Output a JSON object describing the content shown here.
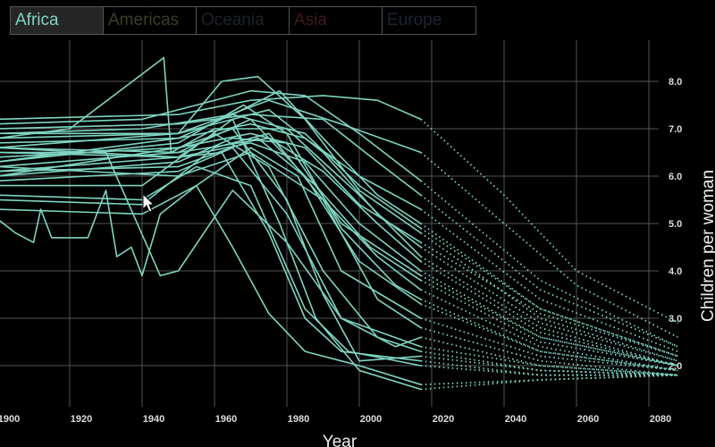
{
  "legend": [
    {
      "label": "Africa",
      "color": "#7fd4c1",
      "active": true
    },
    {
      "label": "Americas",
      "color": "#3a3f24",
      "active": false
    },
    {
      "label": "Oceania",
      "color": "#1e2328",
      "active": false
    },
    {
      "label": "Asia",
      "color": "#3e1b1d",
      "active": false
    },
    {
      "label": "Europe",
      "color": "#1c2531",
      "active": false
    }
  ],
  "chart_data": {
    "type": "line",
    "xlabel": "Year",
    "ylabel": "Children per woman",
    "xlim": [
      1900,
      2088
    ],
    "ylim": [
      1.5,
      8.6
    ],
    "x_ticks": [
      "1900",
      "1920",
      "1940",
      "1960",
      "1980",
      "2000",
      "2020",
      "2040",
      "2060",
      "2080"
    ],
    "y_ticks": [
      "2.0",
      "3.0",
      "4.0",
      "5.0",
      "6.0",
      "7.0",
      "8.0"
    ],
    "grid": true,
    "line_color": "#7fd4c1",
    "history_style": "solid",
    "projection_style": "dotted",
    "series": [
      {
        "history": [
          [
            1900,
            7.2
          ],
          [
            1950,
            7.3
          ],
          [
            1970,
            7.6
          ],
          [
            1990,
            7.7
          ],
          [
            2005,
            7.6
          ],
          [
            2017,
            7.2
          ]
        ],
        "projection": [
          [
            2017,
            7.2
          ],
          [
            2040,
            5.6
          ],
          [
            2060,
            4.0
          ],
          [
            2088,
            2.9
          ]
        ]
      },
      {
        "history": [
          [
            1900,
            6.9
          ],
          [
            1950,
            6.9
          ],
          [
            1975,
            7.6
          ],
          [
            1995,
            7.1
          ],
          [
            2017,
            6.5
          ]
        ],
        "projection": [
          [
            2017,
            6.5
          ],
          [
            2040,
            5.0
          ],
          [
            2060,
            3.7
          ],
          [
            2088,
            2.6
          ]
        ]
      },
      {
        "history": [
          [
            1900,
            5.1
          ],
          [
            1905,
            4.8
          ],
          [
            1910,
            4.6
          ],
          [
            1912,
            5.3
          ],
          [
            1915,
            4.7
          ],
          [
            1925,
            4.7
          ],
          [
            1930,
            5.7
          ],
          [
            1933,
            4.3
          ],
          [
            1937,
            4.5
          ],
          [
            1940,
            3.9
          ],
          [
            1945,
            5.2
          ],
          [
            1955,
            5.8
          ],
          [
            1965,
            4.5
          ],
          [
            1975,
            3.1
          ],
          [
            1985,
            2.3
          ],
          [
            2000,
            2.0
          ],
          [
            2017,
            1.6
          ]
        ],
        "projection": [
          [
            2017,
            1.6
          ],
          [
            2050,
            1.7
          ],
          [
            2088,
            1.8
          ]
        ]
      },
      {
        "history": [
          [
            1900,
            6.0
          ],
          [
            1950,
            6.6
          ],
          [
            1965,
            7.0
          ],
          [
            1980,
            5.5
          ],
          [
            1990,
            3.5
          ],
          [
            2000,
            2.1
          ],
          [
            2017,
            2.2
          ]
        ],
        "projection": [
          [
            2017,
            2.2
          ],
          [
            2050,
            1.9
          ],
          [
            2088,
            1.8
          ]
        ]
      },
      {
        "history": [
          [
            1900,
            6.8
          ],
          [
            1920,
            7.0
          ],
          [
            1946,
            8.5
          ],
          [
            1948,
            6.5
          ],
          [
            1960,
            7.0
          ],
          [
            1980,
            7.0
          ],
          [
            2000,
            5.6
          ],
          [
            2017,
            4.3
          ]
        ],
        "projection": [
          [
            2017,
            4.3
          ],
          [
            2050,
            2.8
          ],
          [
            2088,
            2.0
          ]
        ]
      },
      {
        "history": [
          [
            1900,
            6.5
          ],
          [
            1930,
            6.5
          ],
          [
            1945,
            3.9
          ],
          [
            1950,
            4.0
          ],
          [
            1965,
            5.7
          ],
          [
            1980,
            4.6
          ],
          [
            1995,
            3.0
          ],
          [
            2017,
            2.4
          ]
        ],
        "projection": [
          [
            2017,
            2.4
          ],
          [
            2050,
            2.0
          ],
          [
            2088,
            1.8
          ]
        ]
      },
      {
        "history": [
          [
            1900,
            6.6
          ],
          [
            1950,
            6.9
          ],
          [
            1962,
            8.0
          ],
          [
            1972,
            8.1
          ],
          [
            1985,
            7.2
          ],
          [
            2000,
            5.7
          ],
          [
            2017,
            4.8
          ]
        ],
        "projection": [
          [
            2017,
            4.8
          ],
          [
            2050,
            3.0
          ],
          [
            2088,
            2.1
          ]
        ]
      },
      {
        "history": [
          [
            1900,
            6.3
          ],
          [
            1950,
            6.8
          ],
          [
            1965,
            7.3
          ],
          [
            1978,
            7.8
          ],
          [
            1990,
            6.8
          ],
          [
            2005,
            5.6
          ],
          [
            2017,
            5.0
          ]
        ],
        "projection": [
          [
            2017,
            5.0
          ],
          [
            2050,
            3.2
          ],
          [
            2088,
            2.2
          ]
        ]
      },
      {
        "history": [
          [
            1900,
            6.2
          ],
          [
            1950,
            6.5
          ],
          [
            1970,
            7.2
          ],
          [
            1985,
            6.0
          ],
          [
            2000,
            4.2
          ],
          [
            2017,
            3.3
          ]
        ],
        "projection": [
          [
            2017,
            3.3
          ],
          [
            2050,
            2.3
          ],
          [
            2088,
            1.9
          ]
        ]
      },
      {
        "history": [
          [
            1900,
            6.1
          ],
          [
            1950,
            6.4
          ],
          [
            1960,
            6.9
          ],
          [
            1975,
            6.2
          ],
          [
            1990,
            4.0
          ],
          [
            2005,
            2.6
          ],
          [
            2017,
            2.3
          ]
        ],
        "projection": [
          [
            2017,
            2.3
          ],
          [
            2050,
            1.9
          ],
          [
            2088,
            1.8
          ]
        ]
      },
      {
        "history": [
          [
            1900,
            5.9
          ],
          [
            1950,
            6.1
          ],
          [
            1965,
            6.6
          ],
          [
            1980,
            5.2
          ],
          [
            1995,
            3.0
          ],
          [
            2010,
            2.4
          ],
          [
            2017,
            2.6
          ]
        ],
        "projection": [
          [
            2017,
            2.6
          ],
          [
            2050,
            2.0
          ],
          [
            2088,
            1.8
          ]
        ]
      },
      {
        "history": [
          [
            1900,
            5.6
          ],
          [
            1940,
            5.5
          ],
          [
            1955,
            6.2
          ],
          [
            1970,
            5.8
          ],
          [
            1985,
            3.2
          ],
          [
            1997,
            2.3
          ],
          [
            2017,
            2.0
          ]
        ],
        "projection": [
          [
            2017,
            2.0
          ],
          [
            2050,
            1.8
          ],
          [
            2088,
            1.8
          ]
        ]
      },
      {
        "history": [
          [
            1900,
            5.8
          ],
          [
            1940,
            5.8
          ],
          [
            1965,
            7.2
          ],
          [
            1978,
            5.0
          ],
          [
            1988,
            3.0
          ],
          [
            2000,
            1.9
          ],
          [
            2017,
            1.5
          ]
        ],
        "projection": [
          [
            2017,
            1.5
          ],
          [
            2050,
            1.7
          ],
          [
            2088,
            1.8
          ]
        ]
      },
      {
        "history": [
          [
            1900,
            6.7
          ],
          [
            1950,
            6.8
          ],
          [
            1970,
            7.1
          ],
          [
            1985,
            6.8
          ],
          [
            2000,
            6.0
          ],
          [
            2017,
            5.3
          ]
        ],
        "projection": [
          [
            2017,
            5.3
          ],
          [
            2050,
            3.4
          ],
          [
            2088,
            2.3
          ]
        ]
      },
      {
        "history": [
          [
            1900,
            6.4
          ],
          [
            1950,
            6.6
          ],
          [
            1970,
            6.9
          ],
          [
            1985,
            6.6
          ],
          [
            2000,
            5.4
          ],
          [
            2017,
            4.6
          ]
        ],
        "projection": [
          [
            2017,
            4.6
          ],
          [
            2050,
            3.1
          ],
          [
            2088,
            2.2
          ]
        ]
      },
      {
        "history": [
          [
            1900,
            6.6
          ],
          [
            1950,
            6.5
          ],
          [
            1975,
            6.8
          ],
          [
            1990,
            6.1
          ],
          [
            2005,
            5.0
          ],
          [
            2017,
            4.2
          ]
        ],
        "projection": [
          [
            2017,
            4.2
          ],
          [
            2050,
            2.7
          ],
          [
            2088,
            2.0
          ]
        ]
      },
      {
        "history": [
          [
            1900,
            6.9
          ],
          [
            1940,
            7.0
          ],
          [
            1965,
            7.3
          ],
          [
            1985,
            6.9
          ],
          [
            2000,
            5.8
          ],
          [
            2017,
            4.9
          ]
        ],
        "projection": [
          [
            2017,
            4.9
          ],
          [
            2050,
            3.2
          ],
          [
            2088,
            2.2
          ]
        ]
      },
      {
        "history": [
          [
            1900,
            6.5
          ],
          [
            1950,
            6.4
          ],
          [
            1970,
            6.7
          ],
          [
            1985,
            6.3
          ],
          [
            2000,
            5.0
          ],
          [
            2017,
            4.0
          ]
        ],
        "projection": [
          [
            2017,
            4.0
          ],
          [
            2050,
            2.6
          ],
          [
            2088,
            2.0
          ]
        ]
      },
      {
        "history": [
          [
            1900,
            6.2
          ],
          [
            1950,
            6.0
          ],
          [
            1970,
            6.5
          ],
          [
            1990,
            5.5
          ],
          [
            2005,
            4.3
          ],
          [
            2017,
            3.6
          ]
        ],
        "projection": [
          [
            2017,
            3.6
          ],
          [
            2050,
            2.4
          ],
          [
            2088,
            1.9
          ]
        ]
      },
      {
        "history": [
          [
            1900,
            7.0
          ],
          [
            1950,
            7.1
          ],
          [
            1970,
            7.3
          ],
          [
            1990,
            7.2
          ],
          [
            2005,
            6.3
          ],
          [
            2017,
            5.6
          ]
        ],
        "projection": [
          [
            2017,
            5.6
          ],
          [
            2050,
            3.6
          ],
          [
            2088,
            2.4
          ]
        ]
      },
      {
        "history": [
          [
            1900,
            6.8
          ],
          [
            1950,
            6.9
          ],
          [
            1975,
            7.4
          ],
          [
            1990,
            6.5
          ],
          [
            2005,
            5.2
          ],
          [
            2017,
            4.5
          ]
        ],
        "projection": [
          [
            2017,
            4.5
          ],
          [
            2050,
            2.9
          ],
          [
            2088,
            2.1
          ]
        ]
      },
      {
        "history": [
          [
            1900,
            5.5
          ],
          [
            1940,
            5.4
          ],
          [
            1960,
            6.6
          ],
          [
            1975,
            6.9
          ],
          [
            1990,
            5.5
          ],
          [
            2005,
            3.4
          ],
          [
            2017,
            2.8
          ]
        ],
        "projection": [
          [
            2017,
            2.8
          ],
          [
            2050,
            2.1
          ],
          [
            2088,
            1.8
          ]
        ]
      },
      {
        "history": [
          [
            1900,
            6.3
          ],
          [
            1950,
            6.7
          ],
          [
            1968,
            7.5
          ],
          [
            1980,
            6.9
          ],
          [
            1995,
            4.9
          ],
          [
            2010,
            3.7
          ],
          [
            2017,
            3.4
          ]
        ],
        "projection": [
          [
            2017,
            3.4
          ],
          [
            2050,
            2.3
          ],
          [
            2088,
            1.9
          ]
        ]
      },
      {
        "history": [
          [
            1900,
            6.0
          ],
          [
            1950,
            6.3
          ],
          [
            1965,
            6.8
          ],
          [
            1980,
            6.7
          ],
          [
            1995,
            5.0
          ],
          [
            2017,
            3.9
          ]
        ],
        "projection": [
          [
            2017,
            3.9
          ],
          [
            2050,
            2.6
          ],
          [
            2088,
            2.0
          ]
        ]
      },
      {
        "history": [
          [
            1900,
            5.3
          ],
          [
            1940,
            5.2
          ],
          [
            1955,
            5.8
          ],
          [
            1970,
            6.6
          ],
          [
            1983,
            6.0
          ],
          [
            1995,
            4.0
          ],
          [
            2017,
            3.0
          ]
        ],
        "projection": [
          [
            2017,
            3.0
          ],
          [
            2050,
            2.2
          ],
          [
            2088,
            1.9
          ]
        ]
      },
      {
        "history": [
          [
            1900,
            6.6
          ],
          [
            1950,
            6.4
          ],
          [
            1962,
            6.5
          ],
          [
            1975,
            4.8
          ],
          [
            1985,
            3.0
          ],
          [
            1995,
            2.3
          ],
          [
            2017,
            2.1
          ]
        ],
        "projection": [
          [
            2017,
            2.1
          ],
          [
            2050,
            1.8
          ],
          [
            2088,
            1.8
          ]
        ]
      },
      {
        "history": [
          [
            1900,
            7.1
          ],
          [
            1940,
            7.2
          ],
          [
            1970,
            7.8
          ],
          [
            1985,
            7.7
          ],
          [
            2000,
            6.9
          ],
          [
            2017,
            5.9
          ]
        ],
        "projection": [
          [
            2017,
            5.9
          ],
          [
            2050,
            3.8
          ],
          [
            2088,
            2.4
          ]
        ]
      },
      {
        "history": [
          [
            1900,
            6.1
          ],
          [
            1950,
            6.2
          ],
          [
            1972,
            6.8
          ],
          [
            1988,
            5.8
          ],
          [
            2003,
            4.5
          ],
          [
            2017,
            3.8
          ]
        ],
        "projection": [
          [
            2017,
            3.8
          ],
          [
            2050,
            2.5
          ],
          [
            2088,
            2.0
          ]
        ]
      }
    ]
  }
}
